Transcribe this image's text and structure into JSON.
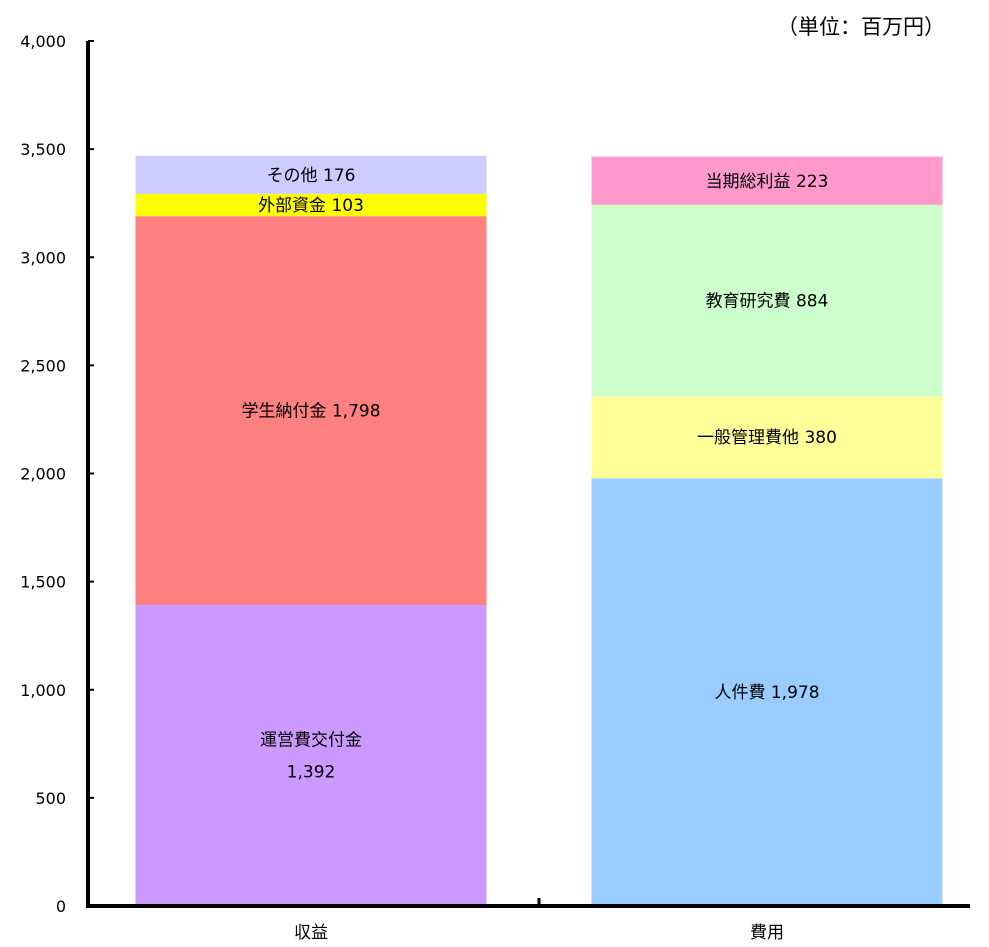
{
  "unit_label": "（単位：百万円）",
  "chart_data": {
    "type": "bar",
    "stacked": true,
    "ylim": [
      0,
      4000
    ],
    "yticks": [
      0,
      500,
      1000,
      1500,
      2000,
      2500,
      3000,
      3500,
      4000
    ],
    "ytick_labels": [
      "0",
      "500",
      "1,000",
      "1,500",
      "2,000",
      "2,500",
      "3,000",
      "3,500",
      "4,000"
    ],
    "categories": [
      "収益",
      "費用"
    ],
    "bars": [
      {
        "category": "収益",
        "segments": [
          {
            "name": "運営費交付金",
            "value": 1392,
            "label_lines": [
              "運営費交付金",
              "1,392"
            ],
            "color": "#cc99ff"
          },
          {
            "name": "学生納付金",
            "value": 1798,
            "label_lines": [
              "学生納付金 1,798"
            ],
            "color": "#ff8080"
          },
          {
            "name": "外部資金",
            "value": 103,
            "label_lines": [
              "外部資金 103"
            ],
            "color": "#ffff00"
          },
          {
            "name": "その他",
            "value": 176,
            "label_lines": [
              "その他 176"
            ],
            "color": "#ccccff"
          }
        ]
      },
      {
        "category": "費用",
        "segments": [
          {
            "name": "人件費",
            "value": 1978,
            "label_lines": [
              "人件費 1,978"
            ],
            "color": "#99ccff"
          },
          {
            "name": "一般管理費他",
            "value": 380,
            "label_lines": [
              "一般管理費他 380"
            ],
            "color": "#ffff99"
          },
          {
            "name": "教育研究費",
            "value": 884,
            "label_lines": [
              "教育研究費 884"
            ],
            "color": "#ccffcc"
          },
          {
            "name": "当期総利益",
            "value": 223,
            "label_lines": [
              "当期総利益 223"
            ],
            "color": "#ff99cc"
          }
        ]
      }
    ]
  }
}
